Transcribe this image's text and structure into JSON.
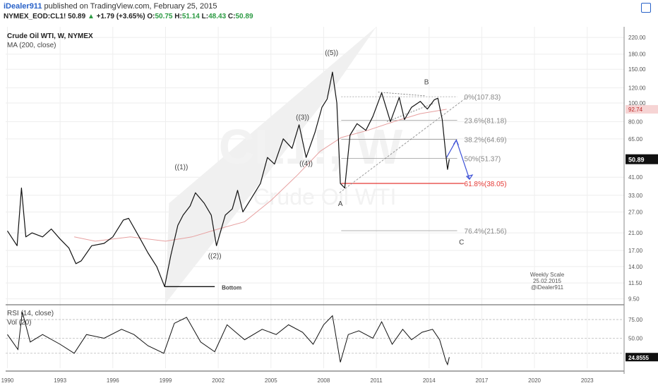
{
  "header": {
    "author": "iDealer911",
    "published": "published on TradingView.com, February 25, 2015",
    "symbol": "NYMEX_EOD:CL1!",
    "last": "50.89",
    "change_arrow": "▲",
    "change": "+1.79 (+3.65%)",
    "o_label": "O:",
    "o": "50.75",
    "h_label": "H:",
    "h": "51.14",
    "l_label": "L:",
    "l": "48.43",
    "c_label": "C:",
    "c": "50.89"
  },
  "legend": {
    "title": "Crude Oil WTI, W, NYMEX",
    "ma": "MA (200, close)",
    "rsi": "RSI (14, close)",
    "vol": "Vol (20)"
  },
  "watermark": {
    "line1": "CL1!, W",
    "line2": "Crude Oil WTI"
  },
  "colors": {
    "price": "#111111",
    "ma": "#e7a0a0",
    "channel": "#f0f0f0",
    "fib": "#999999",
    "fib_red": "#e53935",
    "arrow": "#3b4fd6",
    "rsi": "#111111",
    "grid": "#eeeeee"
  },
  "note": {
    "line1": "Weekly Scale",
    "line2": "25.02.2015",
    "line3": "@iDealer911"
  },
  "chart_data": {
    "type": "line",
    "title": "Crude Oil WTI, W, NYMEX",
    "y_scale": "log",
    "ylim": [
      9,
      250
    ],
    "y_ticks": [
      220.0,
      180.0,
      150.0,
      120.0,
      100.0,
      80.0,
      65.0,
      41.0,
      33.0,
      27.0,
      21.0,
      17.0,
      14.0,
      11.5,
      9.5
    ],
    "x_ticks": [
      "1990",
      "1993",
      "1996",
      "1999",
      "2002",
      "2005",
      "2008",
      "2011",
      "2014",
      "2017",
      "2020",
      "2023"
    ],
    "x_tick_years": [
      1990,
      1993,
      1996,
      1999,
      2002,
      2005,
      2008,
      2011,
      2014,
      2017,
      2020,
      2023
    ],
    "xlim": [
      1989.9,
      2025.1
    ],
    "price_series": {
      "name": "Crude Oil WTI",
      "x": [
        1990.0,
        1990.55,
        1990.8,
        1991.05,
        1991.4,
        1992.0,
        1992.5,
        1993.0,
        1993.5,
        1993.9,
        1994.2,
        1994.8,
        1995.5,
        1996.0,
        1996.6,
        1996.9,
        1997.5,
        1998.0,
        1998.5,
        1998.95,
        1999.3,
        1999.7,
        2000.0,
        2000.4,
        2000.7,
        2001.2,
        2001.6,
        2001.9,
        2002.4,
        2002.8,
        2003.1,
        2003.4,
        2003.9,
        2004.4,
        2004.8,
        2005.2,
        2005.7,
        2006.2,
        2006.6,
        2007.0,
        2007.5,
        2007.9,
        2008.2,
        2008.5,
        2008.75,
        2008.95,
        2009.2,
        2009.5,
        2009.9,
        2010.4,
        2010.8,
        2011.3,
        2011.8,
        2012.3,
        2012.6,
        2013.0,
        2013.5,
        2013.9,
        2014.3,
        2014.5,
        2014.75,
        2014.95,
        2015.05,
        2015.15
      ],
      "y": [
        21.5,
        18.0,
        36.0,
        20.0,
        21.0,
        20.0,
        22.0,
        19.5,
        17.5,
        14.5,
        15.0,
        18.0,
        18.5,
        20.0,
        24.5,
        25.0,
        20.0,
        16.5,
        14.0,
        11.0,
        16.0,
        23.0,
        26.0,
        29.0,
        34.0,
        30.0,
        26.0,
        18.0,
        26.0,
        28.0,
        35.0,
        27.0,
        32.0,
        38.0,
        52.0,
        48.0,
        65.0,
        58.0,
        77.0,
        52.0,
        70.0,
        95.0,
        105.0,
        145.0,
        100.0,
        38.0,
        36.0,
        68.0,
        78.0,
        72.0,
        85.0,
        113.0,
        80.0,
        107.0,
        82.0,
        95.0,
        102.0,
        93.0,
        104.0,
        106.0,
        82.0,
        54.0,
        45.0,
        50.89
      ]
    },
    "ma_series": {
      "name": "MA (200, close)",
      "x": [
        1993.8,
        1995.0,
        1997.0,
        1999.0,
        2000.5,
        2002.0,
        2003.5,
        2005.0,
        2006.5,
        2007.8,
        2009.0,
        2010.5,
        2012.0,
        2013.5,
        2015.0
      ],
      "y": [
        20.0,
        19.0,
        20.0,
        19.0,
        20.0,
        22.0,
        24.0,
        31.0,
        42.0,
        56.0,
        66.0,
        72.0,
        80.0,
        88.0,
        92.74
      ]
    },
    "current": {
      "price": 50.89,
      "ma": 92.74
    },
    "fib_levels": [
      {
        "label": "0%(107.83)",
        "value": 107.83
      },
      {
        "label": "23.6%(81.18)",
        "value": 81.18
      },
      {
        "label": "38.2%(64.69)",
        "value": 64.69
      },
      {
        "label": "50%(51.37)",
        "value": 51.37
      },
      {
        "label": "61.8%(38.05)",
        "value": 38.05
      },
      {
        "label": "76.4%(21.56)",
        "value": 21.56
      }
    ],
    "wave_labels": [
      {
        "text": "((1))",
        "x": 1999.9,
        "y": 45.0
      },
      {
        "text": "((2))",
        "x": 2001.8,
        "y": 15.5
      },
      {
        "text": "((3))",
        "x": 2006.8,
        "y": 82.0
      },
      {
        "text": "((4))",
        "x": 2007.0,
        "y": 47.0
      },
      {
        "text": "((5))",
        "x": 2008.45,
        "y": 178.0
      },
      {
        "text": "A",
        "x": 2008.95,
        "y": 29.0
      },
      {
        "text": "B",
        "x": 2013.85,
        "y": 125.0
      },
      {
        "text": "C",
        "x": 2015.85,
        "y": 18.3
      },
      {
        "text": "Bottom",
        "x": 2002.2,
        "y": 10.6
      }
    ],
    "rsi": {
      "name": "RSI (14, close)",
      "ticks": [
        75.0,
        50.0
      ],
      "current": 24.8555,
      "current_label": "24.8555",
      "x": [
        1990.0,
        1990.6,
        1990.85,
        1991.3,
        1992.0,
        1993.0,
        1993.8,
        1994.5,
        1995.5,
        1996.5,
        1997.2,
        1998.0,
        1998.9,
        1999.5,
        2000.2,
        2001.0,
        2001.8,
        2002.5,
        2003.0,
        2003.5,
        2004.5,
        2005.3,
        2006.0,
        2006.8,
        2007.4,
        2008.0,
        2008.5,
        2008.95,
        2009.4,
        2010.0,
        2010.8,
        2011.3,
        2011.9,
        2012.5,
        2013.0,
        2013.6,
        2014.2,
        2014.6,
        2014.95,
        2015.05,
        2015.15
      ],
      "y": [
        55,
        35,
        85,
        45,
        55,
        42,
        30,
        55,
        50,
        62,
        55,
        40,
        30,
        70,
        78,
        45,
        32,
        68,
        58,
        48,
        62,
        55,
        68,
        58,
        42,
        68,
        80,
        18,
        55,
        60,
        50,
        72,
        42,
        62,
        48,
        58,
        62,
        48,
        20,
        15,
        24.86
      ]
    }
  }
}
